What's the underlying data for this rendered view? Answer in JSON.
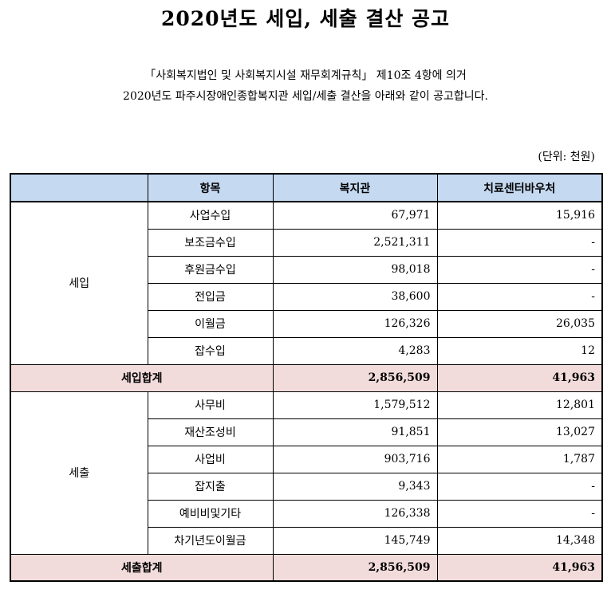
{
  "title": "2020년도 세입, 세출 결산 공고",
  "notice_line1": "「사회복지법인 및 사회복지시설 재무회계규칙」 제10조 4항에 의거",
  "notice_line2": "2020년도 파주시장애인종합복지관 세입/세출 결산을 아래와 같이 공고합니다.",
  "unit": "(단위: 천원)",
  "table": {
    "headers": [
      "",
      "항목",
      "복지관",
      "치료센터바우처"
    ],
    "revenue": {
      "category": "세입",
      "rows": [
        {
          "item": "사업수입",
          "welfare": "67,971",
          "voucher": "15,916"
        },
        {
          "item": "보조금수입",
          "welfare": "2,521,311",
          "voucher": "-"
        },
        {
          "item": "후원금수입",
          "welfare": "98,018",
          "voucher": "-"
        },
        {
          "item": "전입금",
          "welfare": "38,600",
          "voucher": "-"
        },
        {
          "item": "이월금",
          "welfare": "126,326",
          "voucher": "26,035"
        },
        {
          "item": "잡수입",
          "welfare": "4,283",
          "voucher": "12"
        }
      ],
      "total": {
        "label": "세입합계",
        "welfare": "2,856,509",
        "voucher": "41,963"
      }
    },
    "expense": {
      "category": "세출",
      "rows": [
        {
          "item": "사무비",
          "welfare": "1,579,512",
          "voucher": "12,801"
        },
        {
          "item": "재산조성비",
          "welfare": "91,851",
          "voucher": "13,027"
        },
        {
          "item": "사업비",
          "welfare": "903,716",
          "voucher": "1,787"
        },
        {
          "item": "잡지출",
          "welfare": "9,343",
          "voucher": "-"
        },
        {
          "item": "예비비및기타",
          "welfare": "126,338",
          "voucher": "-"
        },
        {
          "item": "차기년도이월금",
          "welfare": "145,749",
          "voucher": "14,348"
        }
      ],
      "total": {
        "label": "세출합계",
        "welfare": "2,856,509",
        "voucher": "41,963"
      }
    }
  }
}
